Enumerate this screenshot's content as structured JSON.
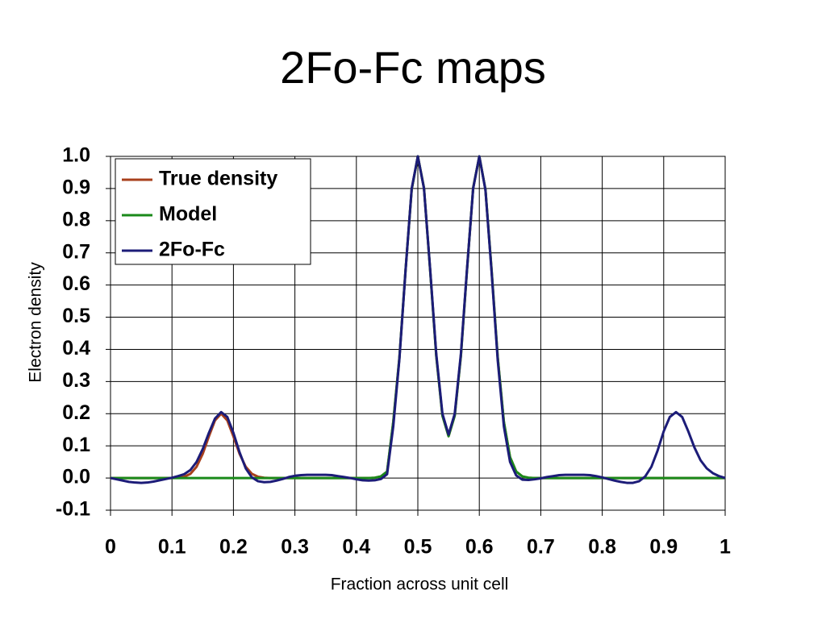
{
  "chart_data": {
    "type": "line",
    "title": "2Fo-Fc maps",
    "xlabel": "Fraction across unit cell",
    "ylabel": "Electron density",
    "x": [
      0,
      0.01,
      0.02,
      0.03,
      0.04,
      0.05,
      0.06,
      0.07,
      0.08,
      0.09,
      0.1,
      0.11,
      0.12,
      0.13,
      0.14,
      0.15,
      0.16,
      0.17,
      0.18,
      0.19,
      0.2,
      0.21,
      0.22,
      0.23,
      0.24,
      0.25,
      0.26,
      0.27,
      0.28,
      0.29,
      0.3,
      0.31,
      0.32,
      0.33,
      0.34,
      0.35,
      0.36,
      0.37,
      0.38,
      0.39,
      0.4,
      0.41,
      0.42,
      0.43,
      0.44,
      0.45,
      0.46,
      0.47,
      0.48,
      0.49,
      0.5,
      0.51,
      0.52,
      0.53,
      0.54,
      0.55,
      0.56,
      0.57,
      0.58,
      0.59,
      0.6,
      0.61,
      0.62,
      0.63,
      0.64,
      0.65,
      0.66,
      0.67,
      0.68,
      0.69,
      0.7,
      0.71,
      0.72,
      0.73,
      0.74,
      0.75,
      0.76,
      0.77,
      0.78,
      0.79,
      0.8,
      0.81,
      0.82,
      0.83,
      0.84,
      0.85,
      0.86,
      0.87,
      0.88,
      0.89,
      0.9,
      0.91,
      0.92,
      0.93,
      0.94,
      0.95,
      0.96,
      0.97,
      0.98,
      0.99,
      1
    ],
    "series": [
      {
        "name": "True density",
        "color": "#a8401c",
        "values": [
          0,
          0,
          0,
          0,
          0,
          0,
          0,
          0,
          0,
          0,
          0,
          0.001,
          0.004,
          0.013,
          0.035,
          0.075,
          0.129,
          0.179,
          0.2,
          0.179,
          0.129,
          0.075,
          0.035,
          0.013,
          0.004,
          0.001,
          0,
          0,
          0,
          0,
          0,
          0,
          0,
          0,
          0,
          0,
          0,
          0,
          0,
          0,
          0,
          0,
          0,
          0.001,
          0.005,
          0.02,
          0.174,
          0.374,
          0.646,
          0.897,
          1.0,
          0.902,
          0.647,
          0.379,
          0.194,
          0.13,
          0.194,
          0.379,
          0.647,
          0.902,
          1.0,
          0.897,
          0.646,
          0.374,
          0.174,
          0.065,
          0.02,
          0.005,
          0.001,
          0,
          0,
          0,
          0,
          0,
          0,
          0,
          0,
          0,
          0,
          0,
          0,
          0,
          0,
          0,
          0,
          0,
          0,
          0,
          0,
          0,
          0,
          0,
          0,
          0,
          0,
          0,
          0,
          0,
          0,
          0,
          0
        ]
      },
      {
        "name": "Model",
        "color": "#1a8a1a",
        "values": [
          0,
          0,
          0,
          0,
          0,
          0,
          0,
          0,
          0,
          0,
          0,
          0,
          0,
          0,
          0,
          0,
          0,
          0,
          0,
          0,
          0,
          0,
          0,
          0,
          0,
          0,
          0,
          0,
          0,
          0,
          0,
          0,
          0,
          0,
          0,
          0,
          0,
          0,
          0,
          0,
          0,
          0,
          0,
          0.001,
          0.005,
          0.02,
          0.174,
          0.374,
          0.646,
          0.897,
          1.0,
          0.902,
          0.647,
          0.379,
          0.194,
          0.13,
          0.194,
          0.379,
          0.647,
          0.902,
          1.0,
          0.897,
          0.646,
          0.374,
          0.174,
          0.065,
          0.02,
          0.005,
          0.001,
          0,
          0,
          0,
          0,
          0,
          0,
          0,
          0,
          0,
          0,
          0,
          0,
          0,
          0,
          0,
          0,
          0,
          0,
          0,
          0,
          0,
          0,
          0,
          0,
          0,
          0,
          0,
          0,
          0,
          0,
          0,
          0
        ]
      },
      {
        "name": "2Fo-Fc",
        "color": "#1c1c78",
        "values": [
          0,
          -0.004,
          -0.008,
          -0.012,
          -0.014,
          -0.015,
          -0.014,
          -0.011,
          -0.007,
          -0.003,
          0.001,
          0.006,
          0.012,
          0.025,
          0.05,
          0.09,
          0.14,
          0.185,
          0.205,
          0.19,
          0.14,
          0.08,
          0.03,
          0.002,
          -0.01,
          -0.013,
          -0.012,
          -0.008,
          -0.003,
          0.003,
          0.007,
          0.009,
          0.01,
          0.01,
          0.01,
          0.01,
          0.009,
          0.006,
          0.003,
          0,
          -0.004,
          -0.007,
          -0.008,
          -0.007,
          -0.003,
          0.012,
          0.16,
          0.37,
          0.645,
          0.9,
          1.0,
          0.9,
          0.65,
          0.385,
          0.2,
          0.135,
          0.2,
          0.385,
          0.65,
          0.9,
          1.0,
          0.895,
          0.64,
          0.365,
          0.16,
          0.05,
          0.008,
          -0.005,
          -0.006,
          -0.004,
          -0.001,
          0.003,
          0.006,
          0.009,
          0.01,
          0.01,
          0.01,
          0.01,
          0.009,
          0.006,
          0.002,
          -0.003,
          -0.008,
          -0.012,
          -0.015,
          -0.015,
          -0.01,
          0.005,
          0.035,
          0.085,
          0.145,
          0.19,
          0.205,
          0.19,
          0.145,
          0.095,
          0.055,
          0.03,
          0.015,
          0.006,
          0
        ]
      }
    ],
    "xlim": [
      0,
      1
    ],
    "xticks": [
      0,
      0.1,
      0.2,
      0.3,
      0.4,
      0.5,
      0.6,
      0.7,
      0.8,
      0.9,
      1
    ],
    "ylim": [
      -0.1,
      1.0
    ],
    "yticks": [
      {
        "value": 1,
        "label": "1.0"
      },
      0.9,
      0.8,
      0.7,
      0.6,
      0.5,
      0.4,
      0.3,
      0.2,
      0.1,
      {
        "value": 0,
        "label": "0.0"
      },
      -0.1
    ],
    "grid": true,
    "legend": "upper left"
  }
}
